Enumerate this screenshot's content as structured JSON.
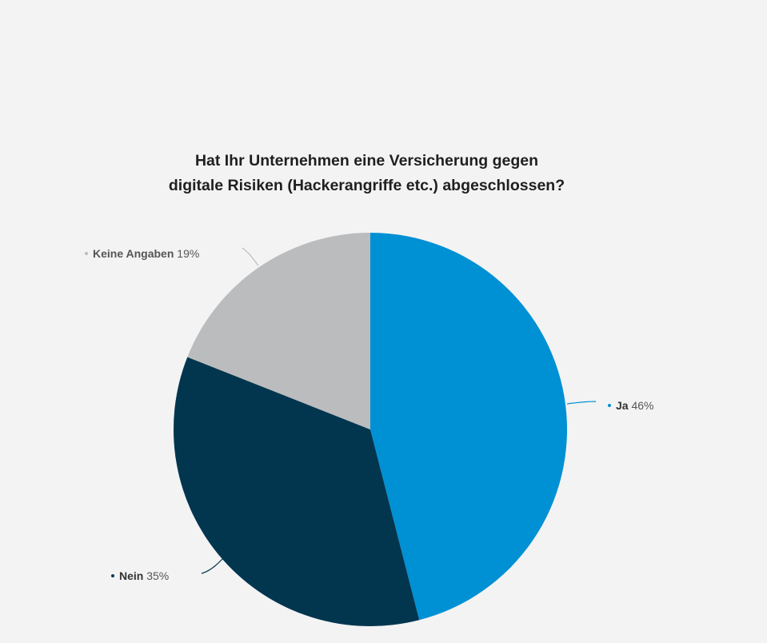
{
  "chart_data": {
    "type": "pie",
    "title": "Hat Ihr Unternehmen eine Versicherung gegen digitale Risiken (Hackerangriffe etc.) abgeschlossen?",
    "title_lines": [
      "Hat Ihr Unternehmen eine Versicherung gegen",
      "digitale Risiken (Hackerangriffe etc.) abgeschlossen?"
    ],
    "slices": [
      {
        "label": "Ja",
        "value": 46,
        "value_label": "46%",
        "color": "#0090d4",
        "label_color": "#333333",
        "dot_color": "#0090d4"
      },
      {
        "label": "Nein",
        "value": 35,
        "value_label": "35%",
        "color": "#02364f",
        "label_color": "#333333",
        "dot_color": "#02364f"
      },
      {
        "label": "Keine Angaben",
        "value": 19,
        "value_label": "19%",
        "color": "#bbbcbd",
        "label_color": "#555555",
        "dot_color": "#bbbcbd"
      }
    ],
    "start_angle_deg": 0,
    "direction": "clockwise",
    "legend": "none"
  }
}
